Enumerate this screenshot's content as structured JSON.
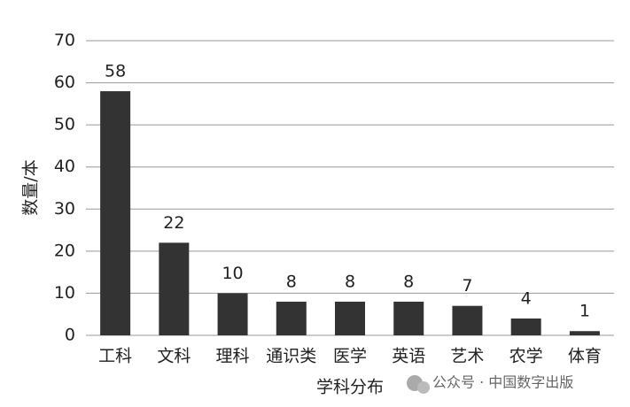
{
  "chart_data": {
    "type": "bar",
    "categories": [
      "工科",
      "文科",
      "理科",
      "通识类",
      "医学",
      "英语",
      "艺术",
      "农学",
      "体育"
    ],
    "values": [
      58,
      22,
      10,
      8,
      8,
      8,
      7,
      4,
      1
    ],
    "color": "#333333",
    "ylim": [
      0,
      70
    ],
    "yticks": [
      0,
      10,
      20,
      30,
      40,
      50,
      60,
      70
    ],
    "grid": true,
    "ylabel": "数量/本",
    "xlabel": "学科分布"
  },
  "watermark": "公众号 · 中国数字出版"
}
